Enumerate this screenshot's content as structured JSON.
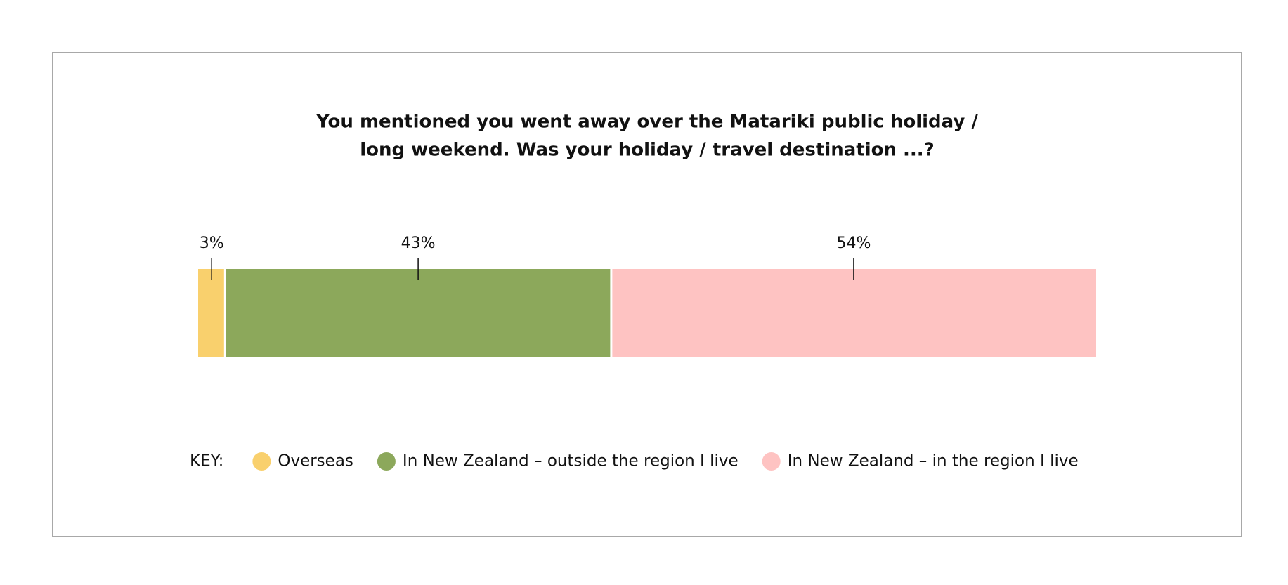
{
  "chart_data": {
    "type": "stacked-bar",
    "title": [
      "You mentioned you went away over the Matariki public holiday /",
      "long weekend. Was your holiday / travel destination ...?"
    ],
    "legend_title": "KEY:",
    "series": [
      {
        "name": "Overseas",
        "color": "#f9d06d",
        "values": [
          3
        ],
        "value_labels": [
          "3%"
        ]
      },
      {
        "name": "In New Zealand – outside the region I live",
        "color": "#8ca85b",
        "values": [
          43
        ],
        "value_labels": [
          "43%"
        ]
      },
      {
        "name": "In New Zealand – in the region I live",
        "color": "#fec3c2",
        "values": [
          54
        ],
        "value_labels": [
          "54%"
        ]
      }
    ]
  }
}
